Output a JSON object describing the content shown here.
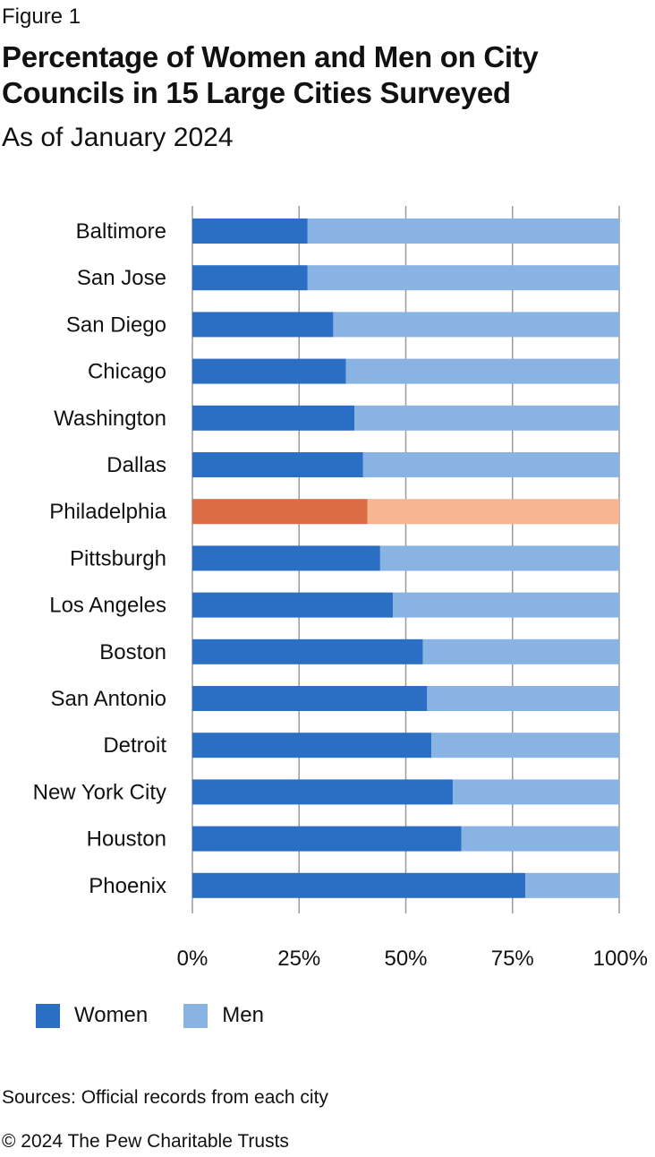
{
  "header": {
    "figure_label": "Figure 1",
    "title": "Percentage of Women and Men on City Councils in 15 Large Cities Surveyed",
    "subtitle": "As of January 2024"
  },
  "colors": {
    "women": "#2b6fc5",
    "men": "#88b3e3",
    "women_highlight": "#dc6c43",
    "men_highlight": "#f8b591",
    "gridline": "#9a9a9a"
  },
  "chart_data": {
    "type": "bar",
    "orientation": "horizontal",
    "stacked": true,
    "title": "Percentage of Women and Men on City Councils in 15 Large Cities Surveyed",
    "subtitle": "As of January 2024",
    "categories": [
      "Baltimore",
      "San Jose",
      "San Diego",
      "Chicago",
      "Washington",
      "Dallas",
      "Philadelphia",
      "Pittsburgh",
      "Los Angeles",
      "Boston",
      "San Antonio",
      "Detroit",
      "New York City",
      "Houston",
      "Phoenix"
    ],
    "series": [
      {
        "name": "Women",
        "values": [
          27,
          27,
          33,
          36,
          38,
          40,
          41,
          44,
          47,
          54,
          55,
          56,
          61,
          63,
          78
        ]
      },
      {
        "name": "Men",
        "values": [
          73,
          73,
          67,
          64,
          62,
          60,
          59,
          56,
          53,
          46,
          45,
          44,
          39,
          37,
          22
        ]
      }
    ],
    "highlight_category": "Philadelphia",
    "xlim": [
      0,
      100
    ],
    "xticks": [
      "0%",
      "25%",
      "50%",
      "75%",
      "100%"
    ],
    "grid": true,
    "legend": {
      "position": "bottom-left",
      "entries": [
        "Women",
        "Men"
      ]
    }
  },
  "footer": {
    "source": "Sources: Official records from each city",
    "copyright": "© 2024 The Pew Charitable Trusts"
  }
}
